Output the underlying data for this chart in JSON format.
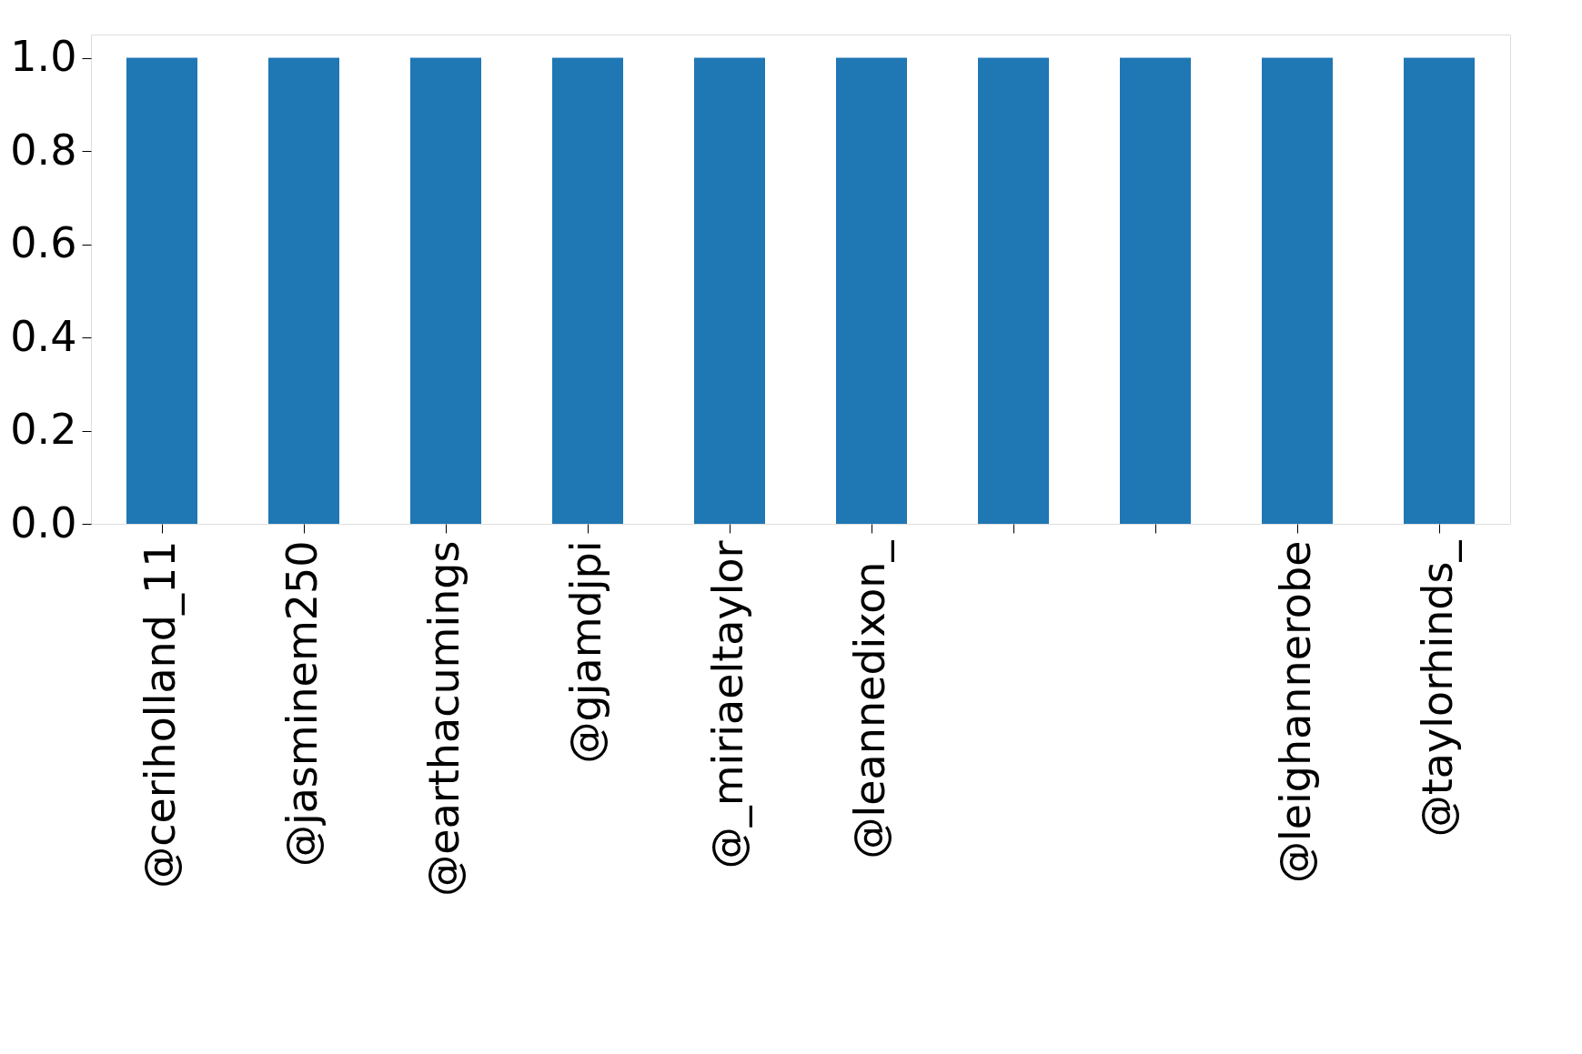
{
  "chart_data": {
    "type": "bar",
    "categories": [
      "@ceriholland_11",
      "@jasminem250",
      "@earthacumings",
      "@gjamdjpi",
      "@_miriaeltaylor",
      "@leannedixon_",
      null,
      null,
      "@leighannerobe",
      "@taylorhinds_"
    ],
    "values": [
      1,
      1,
      1,
      1,
      1,
      1,
      1,
      1,
      1,
      1
    ],
    "color": "#1f77b4",
    "ylim": [
      0,
      1.05
    ],
    "yticks": [
      {
        "value": 0,
        "label": "0.0"
      },
      {
        "value": 0.2,
        "label": "0.2"
      },
      {
        "value": 0.4,
        "label": "0.4"
      },
      {
        "value": 0.6,
        "label": "0.6"
      },
      {
        "value": 0.8,
        "label": "0.8"
      },
      {
        "value": 1.0,
        "label": "1.0"
      }
    ],
    "grid": false
  }
}
